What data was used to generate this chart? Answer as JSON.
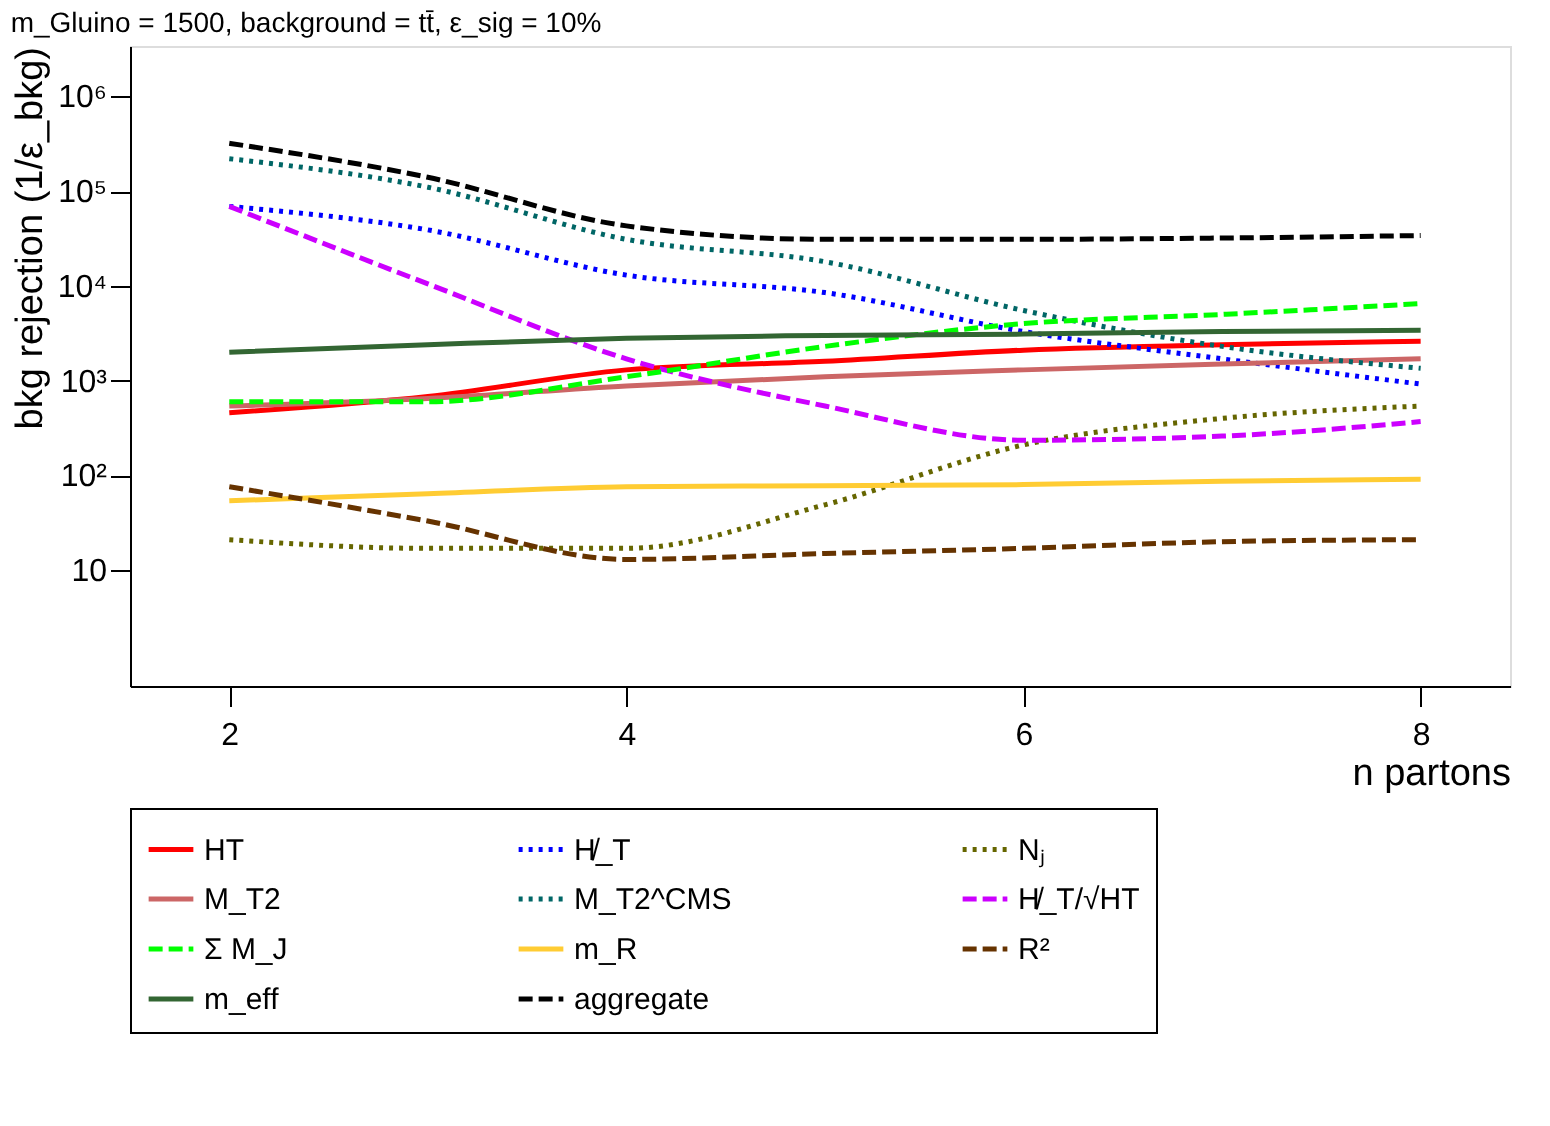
{
  "chart_data": {
    "type": "line",
    "title": "m_Gluino = 1500, background = tt̄, ε_sig = 10%",
    "xlabel": "n partons",
    "ylabel": "bkg rejection (1/ε_bkg)",
    "x": [
      2,
      3,
      4,
      5,
      6,
      7,
      8
    ],
    "series": [
      {
        "name": "HT",
        "color": "#ff0000",
        "line_style": "solid",
        "values": [
          460,
          680,
          1300,
          1600,
          2100,
          2400,
          2600
        ]
      },
      {
        "name": "H̸_T",
        "color": "#0000ff",
        "line_style": "dotted",
        "values": [
          69000,
          39000,
          13000,
          8500,
          3300,
          1700,
          920
        ]
      },
      {
        "name": "Nⱼ",
        "color": "#666600",
        "line_style": "dotted",
        "values": [
          21,
          17,
          17,
          49,
          210,
          400,
          540
        ]
      },
      {
        "name": "M_T2",
        "color": "#cc6666",
        "line_style": "solid",
        "values": [
          540,
          650,
          880,
          1100,
          1300,
          1500,
          1700
        ]
      },
      {
        "name": "M_T2^CMS",
        "color": "#006666",
        "line_style": "dotted",
        "values": [
          220000,
          110000,
          31000,
          18000,
          5500,
          2300,
          1350
        ]
      },
      {
        "name": "H̸_T/√HT",
        "color": "#cc00ff",
        "line_style": "dashed",
        "values": [
          69000,
          10500,
          1700,
          540,
          235,
          260,
          370
        ]
      },
      {
        "name": "Σ M_J",
        "color": "#00ff00",
        "line_style": "dashed",
        "values": [
          600,
          600,
          1100,
          2300,
          4000,
          5000,
          6500
        ]
      },
      {
        "name": "m_R",
        "color": "#ffcc33",
        "line_style": "solid",
        "values": [
          54,
          64,
          76,
          78,
          80,
          87,
          91
        ]
      },
      {
        "name": "R²",
        "color": "#663300",
        "line_style": "dashed",
        "values": [
          76,
          33,
          13,
          15,
          17,
          20,
          21
        ]
      },
      {
        "name": "m_eff",
        "color": "#336633",
        "line_style": "solid",
        "values": [
          2000,
          2400,
          2800,
          3000,
          3100,
          3300,
          3400
        ]
      },
      {
        "name": "aggregate",
        "color": "#000000",
        "line_style": "dashed",
        "values": [
          320000,
          140000,
          43000,
          31000,
          31000,
          32000,
          34000
        ]
      }
    ],
    "xlim": [
      1.5,
      8.45
    ],
    "ylim": [
      0.6,
      3400000
    ],
    "xticks": [
      2,
      4,
      6,
      8
    ],
    "yticks": [
      {
        "value": 10,
        "label": "10"
      },
      {
        "value": 100,
        "label": "10²"
      },
      {
        "value": 1000,
        "label": "10³"
      },
      {
        "value": 10000,
        "label": "10⁴"
      },
      {
        "value": 100000,
        "label": "10⁵"
      },
      {
        "value": 1000000,
        "label": "10⁶"
      }
    ],
    "log": "y",
    "grid": false,
    "legend": "bottom"
  }
}
